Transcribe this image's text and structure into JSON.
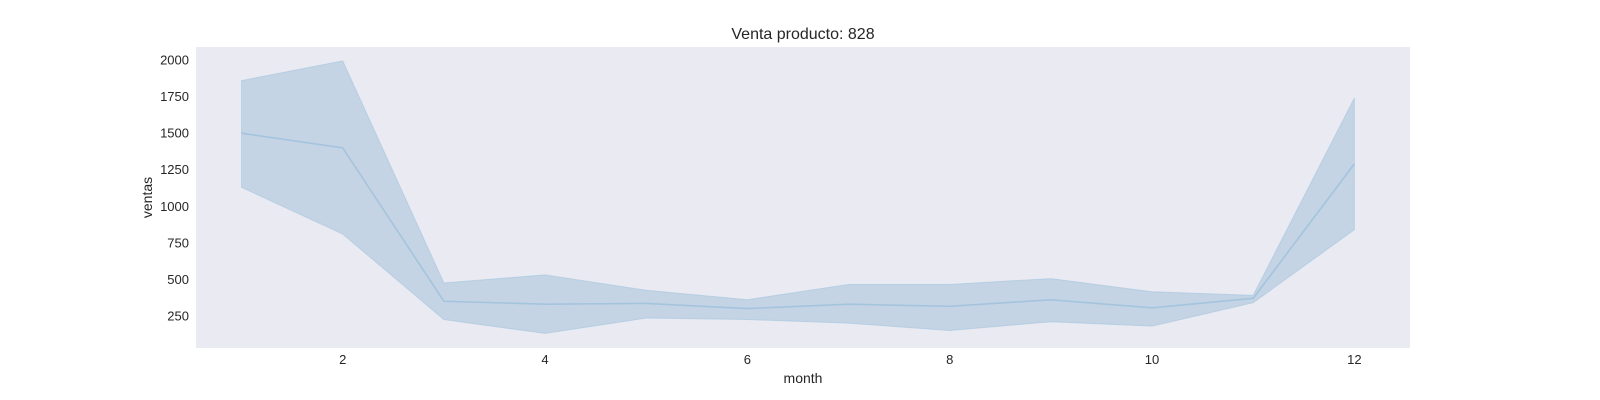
{
  "chart_data": {
    "type": "line",
    "title": "Venta producto: 828",
    "xlabel": "month",
    "ylabel": "ventas",
    "xlim": [
      0.55,
      12.55
    ],
    "ylim": [
      30,
      2090
    ],
    "xticks": [
      2,
      4,
      6,
      8,
      10,
      12
    ],
    "yticks": [
      250,
      500,
      750,
      1000,
      1250,
      1500,
      1750,
      2000
    ],
    "grid": false,
    "background_color": "#eaeaf2",
    "line_color": "#a4c4dd",
    "band_color": "#c2d3e4",
    "series": [
      {
        "x": [
          1,
          2,
          3,
          4,
          5,
          6,
          7,
          8,
          9,
          10,
          11,
          12
        ],
        "y": [
          1500,
          1400,
          350,
          330,
          335,
          300,
          330,
          315,
          360,
          305,
          370,
          1290
        ],
        "lower": [
          1130,
          810,
          225,
          130,
          235,
          225,
          200,
          150,
          210,
          180,
          340,
          840
        ],
        "upper": [
          1860,
          1995,
          475,
          530,
          425,
          360,
          465,
          465,
          505,
          415,
          390,
          1740
        ]
      }
    ]
  }
}
